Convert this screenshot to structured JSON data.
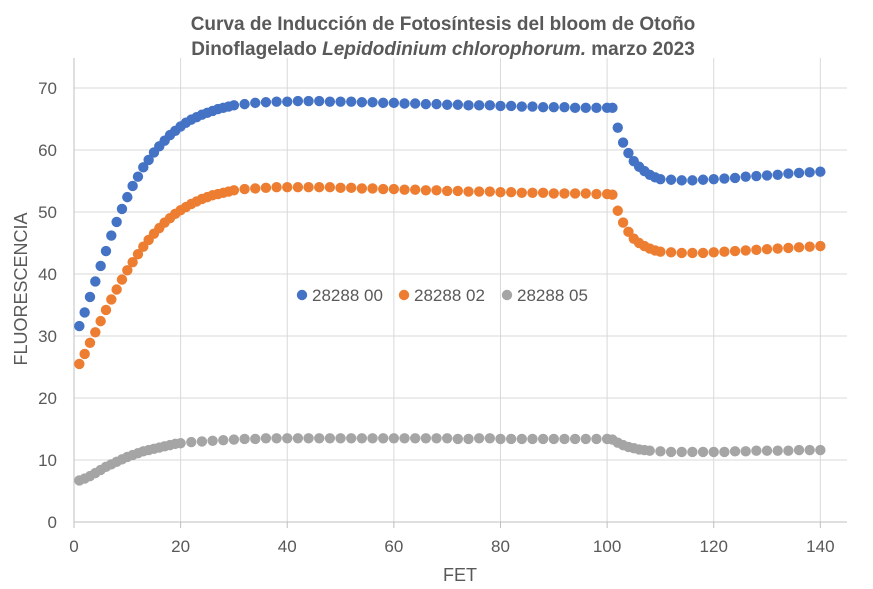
{
  "chart_data": {
    "type": "scatter",
    "title_line1": "Curva de Inducción de Fotosíntesis del bloom de Otoño",
    "title_line2_prefix": "Dinoflagelado ",
    "title_line2_species": "Lepidodinium chlorophorum.",
    "title_line2_suffix": " marzo 2023",
    "xlabel": "FET",
    "ylabel": "FLUORESCENCIA",
    "xlim": [
      0,
      145
    ],
    "ylim": [
      0,
      70
    ],
    "xticks": [
      0,
      20,
      40,
      60,
      80,
      100,
      120,
      140
    ],
    "yticks": [
      0,
      10,
      20,
      30,
      40,
      50,
      60,
      70
    ],
    "grid": true,
    "legend_position": "inside-center",
    "series": [
      {
        "name": "28288 00",
        "color": "#4472C4",
        "points": [
          [
            1,
            31.6
          ],
          [
            2,
            33.8
          ],
          [
            3,
            36.3
          ],
          [
            4,
            38.8
          ],
          [
            5,
            41.3
          ],
          [
            6,
            43.7
          ],
          [
            7,
            46.2
          ],
          [
            8,
            48.4
          ],
          [
            9,
            50.5
          ],
          [
            10,
            52.4
          ],
          [
            11,
            54.2
          ],
          [
            12,
            55.7
          ],
          [
            13,
            57.2
          ],
          [
            14,
            58.4
          ],
          [
            15,
            59.6
          ],
          [
            16,
            60.6
          ],
          [
            17,
            61.5
          ],
          [
            18,
            62.4
          ],
          [
            19,
            63.1
          ],
          [
            20,
            63.8
          ],
          [
            21,
            64.4
          ],
          [
            22,
            64.9
          ],
          [
            23,
            65.3
          ],
          [
            24,
            65.7
          ],
          [
            25,
            66.0
          ],
          [
            26,
            66.3
          ],
          [
            27,
            66.6
          ],
          [
            28,
            66.8
          ],
          [
            29,
            67.0
          ],
          [
            30,
            67.2
          ],
          [
            32,
            67.4
          ],
          [
            34,
            67.6
          ],
          [
            36,
            67.7
          ],
          [
            38,
            67.8
          ],
          [
            40,
            67.8
          ],
          [
            42,
            67.9
          ],
          [
            44,
            67.9
          ],
          [
            46,
            67.9
          ],
          [
            48,
            67.8
          ],
          [
            50,
            67.8
          ],
          [
            52,
            67.8
          ],
          [
            54,
            67.7
          ],
          [
            56,
            67.7
          ],
          [
            58,
            67.6
          ],
          [
            60,
            67.6
          ],
          [
            62,
            67.5
          ],
          [
            64,
            67.5
          ],
          [
            66,
            67.4
          ],
          [
            68,
            67.4
          ],
          [
            70,
            67.3
          ],
          [
            72,
            67.3
          ],
          [
            74,
            67.2
          ],
          [
            76,
            67.2
          ],
          [
            78,
            67.2
          ],
          [
            80,
            67.1
          ],
          [
            82,
            67.1
          ],
          [
            84,
            67.0
          ],
          [
            86,
            67.0
          ],
          [
            88,
            66.9
          ],
          [
            90,
            66.9
          ],
          [
            92,
            66.9
          ],
          [
            94,
            66.8
          ],
          [
            96,
            66.8
          ],
          [
            98,
            66.8
          ],
          [
            100,
            66.8
          ],
          [
            101,
            66.8
          ],
          [
            102,
            63.6
          ],
          [
            103,
            61.2
          ],
          [
            104,
            59.5
          ],
          [
            105,
            58.2
          ],
          [
            106,
            57.3
          ],
          [
            107,
            56.6
          ],
          [
            108,
            56.0
          ],
          [
            109,
            55.6
          ],
          [
            110,
            55.3
          ],
          [
            112,
            55.2
          ],
          [
            114,
            55.1
          ],
          [
            116,
            55.1
          ],
          [
            118,
            55.2
          ],
          [
            120,
            55.3
          ],
          [
            122,
            55.4
          ],
          [
            124,
            55.5
          ],
          [
            126,
            55.7
          ],
          [
            128,
            55.8
          ],
          [
            130,
            55.9
          ],
          [
            132,
            56.0
          ],
          [
            134,
            56.2
          ],
          [
            136,
            56.3
          ],
          [
            138,
            56.4
          ],
          [
            140,
            56.5
          ]
        ]
      },
      {
        "name": "28288 02",
        "color": "#ED7D31",
        "points": [
          [
            1,
            25.5
          ],
          [
            2,
            27.1
          ],
          [
            3,
            28.9
          ],
          [
            4,
            30.6
          ],
          [
            5,
            32.4
          ],
          [
            6,
            34.2
          ],
          [
            7,
            35.9
          ],
          [
            8,
            37.5
          ],
          [
            9,
            39.1
          ],
          [
            10,
            40.6
          ],
          [
            11,
            41.9
          ],
          [
            12,
            43.2
          ],
          [
            13,
            44.4
          ],
          [
            14,
            45.5
          ],
          [
            15,
            46.5
          ],
          [
            16,
            47.4
          ],
          [
            17,
            48.3
          ],
          [
            18,
            49.0
          ],
          [
            19,
            49.7
          ],
          [
            20,
            50.3
          ],
          [
            21,
            50.8
          ],
          [
            22,
            51.3
          ],
          [
            23,
            51.7
          ],
          [
            24,
            52.1
          ],
          [
            25,
            52.4
          ],
          [
            26,
            52.7
          ],
          [
            27,
            52.9
          ],
          [
            28,
            53.1
          ],
          [
            29,
            53.3
          ],
          [
            30,
            53.5
          ],
          [
            32,
            53.7
          ],
          [
            34,
            53.8
          ],
          [
            36,
            53.9
          ],
          [
            38,
            54.0
          ],
          [
            40,
            54.0
          ],
          [
            42,
            54.0
          ],
          [
            44,
            54.0
          ],
          [
            46,
            54.0
          ],
          [
            48,
            54.0
          ],
          [
            50,
            53.9
          ],
          [
            52,
            53.9
          ],
          [
            54,
            53.8
          ],
          [
            56,
            53.8
          ],
          [
            58,
            53.7
          ],
          [
            60,
            53.7
          ],
          [
            62,
            53.6
          ],
          [
            64,
            53.6
          ],
          [
            66,
            53.5
          ],
          [
            68,
            53.5
          ],
          [
            70,
            53.4
          ],
          [
            72,
            53.4
          ],
          [
            74,
            53.3
          ],
          [
            76,
            53.3
          ],
          [
            78,
            53.3
          ],
          [
            80,
            53.2
          ],
          [
            82,
            53.2
          ],
          [
            84,
            53.1
          ],
          [
            86,
            53.1
          ],
          [
            88,
            53.1
          ],
          [
            90,
            53.0
          ],
          [
            92,
            53.0
          ],
          [
            94,
            53.0
          ],
          [
            96,
            53.0
          ],
          [
            98,
            52.9
          ],
          [
            100,
            52.9
          ],
          [
            101,
            52.8
          ],
          [
            102,
            50.2
          ],
          [
            103,
            48.3
          ],
          [
            104,
            46.8
          ],
          [
            105,
            45.7
          ],
          [
            106,
            45.0
          ],
          [
            107,
            44.5
          ],
          [
            108,
            44.1
          ],
          [
            109,
            43.8
          ],
          [
            110,
            43.6
          ],
          [
            112,
            43.5
          ],
          [
            114,
            43.4
          ],
          [
            116,
            43.4
          ],
          [
            118,
            43.4
          ],
          [
            120,
            43.5
          ],
          [
            122,
            43.6
          ],
          [
            124,
            43.7
          ],
          [
            126,
            43.8
          ],
          [
            128,
            43.9
          ],
          [
            130,
            44.0
          ],
          [
            132,
            44.1
          ],
          [
            134,
            44.2
          ],
          [
            136,
            44.3
          ],
          [
            138,
            44.4
          ],
          [
            140,
            44.5
          ]
        ]
      },
      {
        "name": "28288 05",
        "color": "#A5A5A5",
        "points": [
          [
            1,
            6.7
          ],
          [
            2,
            7.0
          ],
          [
            3,
            7.4
          ],
          [
            4,
            7.9
          ],
          [
            5,
            8.4
          ],
          [
            6,
            8.9
          ],
          [
            7,
            9.3
          ],
          [
            8,
            9.7
          ],
          [
            9,
            10.1
          ],
          [
            10,
            10.5
          ],
          [
            11,
            10.8
          ],
          [
            12,
            11.1
          ],
          [
            13,
            11.4
          ],
          [
            14,
            11.6
          ],
          [
            15,
            11.8
          ],
          [
            16,
            12.0
          ],
          [
            17,
            12.2
          ],
          [
            18,
            12.4
          ],
          [
            19,
            12.6
          ],
          [
            20,
            12.7
          ],
          [
            22,
            12.9
          ],
          [
            24,
            13.0
          ],
          [
            26,
            13.1
          ],
          [
            28,
            13.2
          ],
          [
            30,
            13.3
          ],
          [
            32,
            13.4
          ],
          [
            34,
            13.4
          ],
          [
            36,
            13.5
          ],
          [
            38,
            13.5
          ],
          [
            40,
            13.5
          ],
          [
            42,
            13.5
          ],
          [
            44,
            13.5
          ],
          [
            46,
            13.5
          ],
          [
            48,
            13.5
          ],
          [
            50,
            13.5
          ],
          [
            52,
            13.5
          ],
          [
            54,
            13.5
          ],
          [
            56,
            13.5
          ],
          [
            58,
            13.5
          ],
          [
            60,
            13.5
          ],
          [
            62,
            13.5
          ],
          [
            64,
            13.5
          ],
          [
            66,
            13.5
          ],
          [
            68,
            13.5
          ],
          [
            70,
            13.5
          ],
          [
            72,
            13.4
          ],
          [
            74,
            13.4
          ],
          [
            76,
            13.5
          ],
          [
            78,
            13.5
          ],
          [
            80,
            13.4
          ],
          [
            82,
            13.4
          ],
          [
            84,
            13.4
          ],
          [
            86,
            13.4
          ],
          [
            88,
            13.4
          ],
          [
            90,
            13.4
          ],
          [
            92,
            13.4
          ],
          [
            94,
            13.4
          ],
          [
            96,
            13.4
          ],
          [
            98,
            13.4
          ],
          [
            100,
            13.4
          ],
          [
            101,
            13.3
          ],
          [
            102,
            12.8
          ],
          [
            103,
            12.4
          ],
          [
            104,
            12.1
          ],
          [
            105,
            11.9
          ],
          [
            106,
            11.7
          ],
          [
            107,
            11.6
          ],
          [
            108,
            11.5
          ],
          [
            110,
            11.4
          ],
          [
            112,
            11.3
          ],
          [
            114,
            11.3
          ],
          [
            116,
            11.3
          ],
          [
            118,
            11.3
          ],
          [
            120,
            11.3
          ],
          [
            122,
            11.3
          ],
          [
            124,
            11.4
          ],
          [
            126,
            11.4
          ],
          [
            128,
            11.5
          ],
          [
            130,
            11.5
          ],
          [
            132,
            11.5
          ],
          [
            134,
            11.5
          ],
          [
            136,
            11.6
          ],
          [
            138,
            11.6
          ],
          [
            140,
            11.6
          ]
        ]
      }
    ]
  }
}
